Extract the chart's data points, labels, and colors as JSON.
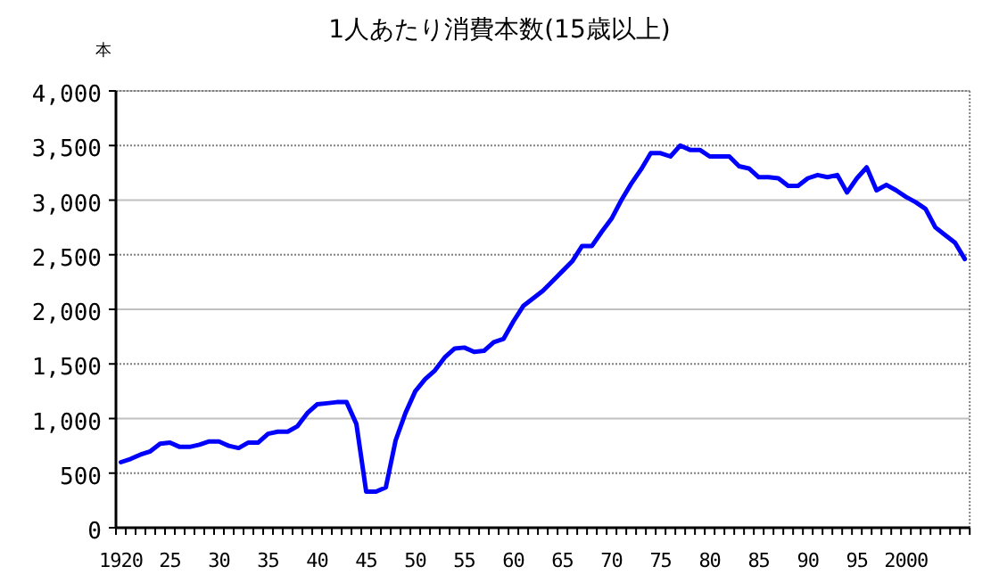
{
  "chart_data": {
    "type": "line",
    "title": "1人あたり消費本数(15歳以上)",
    "ylabel": "本",
    "categories": [
      "1920",
      null,
      null,
      null,
      null,
      "25",
      null,
      null,
      null,
      null,
      "30",
      null,
      null,
      null,
      null,
      "35",
      null,
      null,
      null,
      null,
      "40",
      null,
      null,
      null,
      null,
      "45",
      null,
      null,
      null,
      null,
      "50",
      null,
      null,
      null,
      null,
      "55",
      null,
      null,
      null,
      null,
      "60",
      null,
      null,
      null,
      null,
      "65",
      null,
      null,
      null,
      null,
      "70",
      null,
      null,
      null,
      null,
      "75",
      null,
      null,
      null,
      null,
      "80",
      null,
      null,
      null,
      null,
      "85",
      null,
      null,
      null,
      null,
      "90",
      null,
      null,
      null,
      null,
      "95",
      null,
      null,
      null,
      null,
      "2000",
      null,
      null,
      null,
      null,
      null,
      null
    ],
    "series": [
      {
        "color": "#0000ff",
        "values": [
          600,
          630,
          670,
          700,
          770,
          780,
          740,
          740,
          760,
          790,
          790,
          750,
          730,
          780,
          780,
          860,
          880,
          880,
          930,
          1050,
          1130,
          1140,
          1150,
          1150,
          950,
          330,
          330,
          370,
          800,
          1050,
          1250,
          1360,
          1440,
          1560,
          1640,
          1650,
          1610,
          1620,
          1700,
          1730,
          1890,
          2030,
          2100,
          2170,
          2260,
          2350,
          2440,
          2580,
          2580,
          2710,
          2830,
          3000,
          3150,
          3280,
          3430,
          3430,
          3400,
          3500,
          3460,
          3460,
          3400,
          3400,
          3400,
          3310,
          3290,
          3210,
          3210,
          3200,
          3130,
          3130,
          3200,
          3230,
          3210,
          3230,
          3070,
          3200,
          3300,
          3090,
          3140,
          3090,
          3030,
          2980,
          2920,
          2750,
          2680,
          2610,
          2460
        ]
      }
    ],
    "ylim": [
      0,
      4000
    ],
    "yticks": [
      {
        "value": 0,
        "label": "0"
      },
      {
        "value": 500,
        "label": "500"
      },
      {
        "value": 1000,
        "label": "1,000"
      },
      {
        "value": 1500,
        "label": "1,500"
      },
      {
        "value": 2000,
        "label": "2,000"
      },
      {
        "value": 2500,
        "label": "2,500"
      },
      {
        "value": 3000,
        "label": "3,000"
      },
      {
        "value": 3500,
        "label": "3,500"
      },
      {
        "value": 4000,
        "label": "4,000"
      }
    ],
    "grid": "y",
    "marker": "none",
    "line_style": "solid"
  }
}
